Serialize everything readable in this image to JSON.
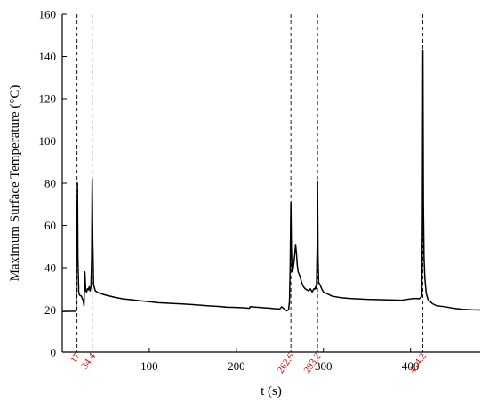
{
  "chart_data": {
    "type": "line",
    "title": "",
    "xlabel": "t (s)",
    "ylabel": "Maximum Surface Temperature (°C)",
    "xlim": [
      0,
      480
    ],
    "ylim": [
      0,
      160
    ],
    "grid": false,
    "x_ticks": [
      100,
      200,
      300,
      400
    ],
    "x_tick_labels": [
      "100",
      "200",
      "300",
      "400"
    ],
    "y_ticks": [
      0,
      20,
      40,
      60,
      80,
      100,
      120,
      140,
      160
    ],
    "y_tick_labels": [
      "0",
      "20",
      "40",
      "60",
      "80",
      "100",
      "120",
      "140",
      "160"
    ],
    "event_lines": [
      {
        "x": 17,
        "label": "17"
      },
      {
        "x": 34.4,
        "label": "34.4"
      },
      {
        "x": 262.6,
        "label": "262.6"
      },
      {
        "x": 293.2,
        "label": "293.2"
      },
      {
        "x": 414.2,
        "label": "414.2"
      }
    ],
    "series": [
      {
        "color": "#000000",
        "x": [
          0,
          16,
          16.8,
          17.5,
          18,
          19,
          20,
          22,
          24,
          25,
          26,
          27,
          28,
          29,
          30,
          31,
          32,
          33,
          33.8,
          34.4,
          35,
          36,
          38,
          42,
          50,
          60,
          70,
          80,
          90,
          100,
          110,
          120,
          130,
          140,
          150,
          160,
          170,
          180,
          190,
          200,
          210,
          215,
          216,
          220,
          230,
          240,
          245,
          250,
          252,
          255,
          258,
          260,
          261,
          261.8,
          262.6,
          263.2,
          264,
          265,
          266,
          267,
          268,
          269,
          270,
          271,
          272,
          273,
          275,
          277,
          279,
          281,
          283,
          285,
          287,
          289,
          290,
          291,
          292,
          292.8,
          293.2,
          293.8,
          294.5,
          296,
          298,
          300,
          305,
          310,
          320,
          330,
          340,
          350,
          360,
          370,
          380,
          390,
          400,
          405,
          410,
          412,
          413,
          413.6,
          414.2,
          414.8,
          415.5,
          416.5,
          418,
          420,
          425,
          430,
          440,
          450,
          460,
          470,
          480
        ],
        "y": [
          19.3,
          19.4,
          60,
          80,
          45,
          28,
          27,
          26.5,
          24.5,
          22,
          38,
          29,
          28.5,
          30,
          29.5,
          31,
          29,
          31,
          45,
          82,
          55,
          32,
          29,
          28,
          27,
          26,
          25.2,
          24.8,
          24.3,
          23.9,
          23.4,
          23.2,
          23,
          22.8,
          22.5,
          22.2,
          21.9,
          21.7,
          21.3,
          21.2,
          21,
          20.8,
          21.6,
          21.4,
          21.1,
          20.8,
          20.6,
          20.5,
          21.5,
          20.5,
          19.6,
          20.2,
          24,
          40,
          71,
          50,
          38,
          39,
          42,
          46,
          51,
          47,
          41,
          38,
          37,
          36,
          33,
          31,
          30,
          29.5,
          29,
          30,
          28.5,
          30,
          29.8,
          31,
          30,
          50,
          81,
          45,
          33,
          32,
          30,
          28.5,
          27.5,
          26.5,
          25.8,
          25.4,
          25.2,
          25,
          24.9,
          24.8,
          24.7,
          24.6,
          25.2,
          25.4,
          25.3,
          26,
          26.5,
          60,
          143,
          70,
          45,
          35,
          28,
          25,
          23,
          22,
          21.5,
          20.8,
          20.3,
          20.1,
          20
        ]
      }
    ]
  }
}
